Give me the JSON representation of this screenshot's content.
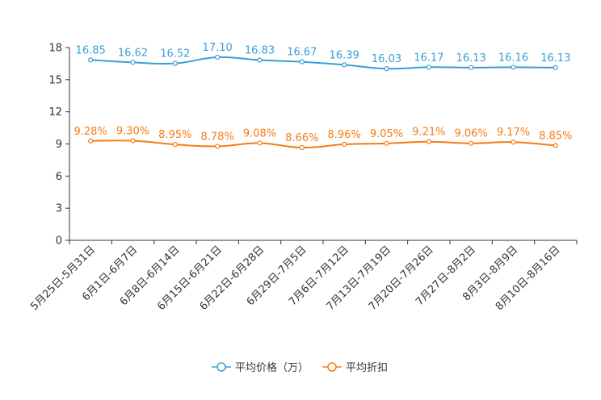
{
  "chart_data": {
    "type": "line",
    "title": "",
    "xlabel": "",
    "ylabel": "",
    "ylim": [
      0,
      18
    ],
    "yticks": [
      0,
      3,
      6,
      9,
      12,
      15,
      18
    ],
    "categories": [
      "5月25日-5月31日",
      "6月1日-6月7日",
      "6月8日-6月14日",
      "6月15日-6月21日",
      "6月22日-6月28日",
      "6月29日-7月5日",
      "7月6日-7月12日",
      "7月13日-7月19日",
      "7月20日-7月26日",
      "7月27日-8月2日",
      "8月3日-8月9日",
      "8月10日-8月16日"
    ],
    "series": [
      {
        "name": "平均价格（万）",
        "color": "#3a9fd4",
        "values": [
          16.85,
          16.62,
          16.52,
          17.1,
          16.83,
          16.67,
          16.39,
          16.03,
          16.17,
          16.13,
          16.16,
          16.13
        ],
        "labels": [
          "16.85",
          "16.62",
          "16.52",
          "17.10",
          "16.83",
          "16.67",
          "16.39",
          "16.03",
          "16.17",
          "16.13",
          "16.16",
          "16.13"
        ]
      },
      {
        "name": "平均折扣",
        "color": "#f57c12",
        "values": [
          9.28,
          9.3,
          8.95,
          8.78,
          9.08,
          8.66,
          8.96,
          9.05,
          9.21,
          9.06,
          9.17,
          8.85
        ],
        "labels": [
          "9.28%",
          "9.30%",
          "8.95%",
          "8.78%",
          "9.08%",
          "8.66%",
          "8.96%",
          "9.05%",
          "9.21%",
          "9.06%",
          "9.17%",
          "8.85%"
        ]
      }
    ],
    "grid": false,
    "legend_position": "bottom-center"
  }
}
